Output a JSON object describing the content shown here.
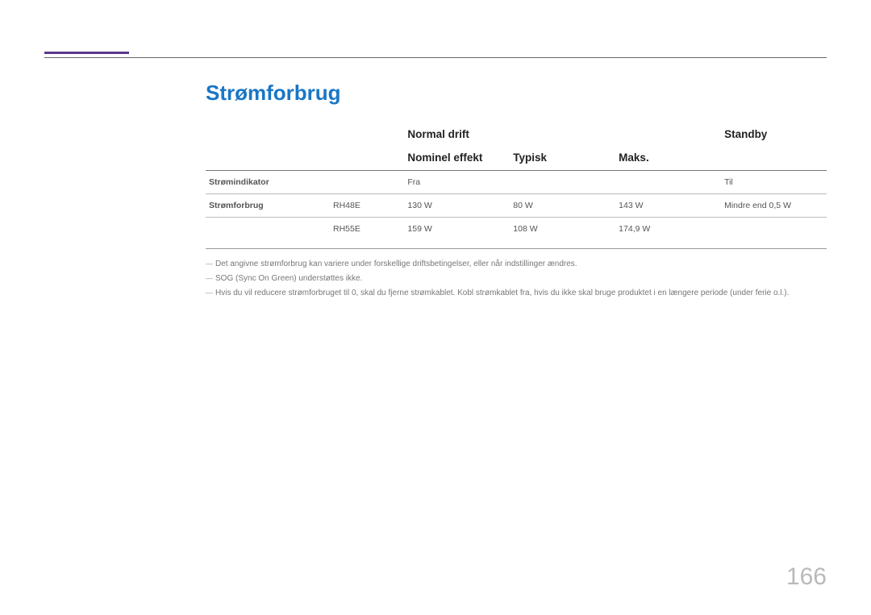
{
  "title": "Strømforbrug",
  "headers": {
    "normal_drift": "Normal drift",
    "standby": "Standby",
    "nominel_effekt": "Nominel effekt",
    "typisk": "Typisk",
    "maks": "Maks."
  },
  "rows": {
    "indicator": {
      "label": "Strømindikator",
      "fra": "Fra",
      "til": "Til"
    },
    "power": {
      "label": "Strømforbrug",
      "r1": {
        "model": "RH48E",
        "nominel": "130 W",
        "typisk": "80 W",
        "maks": "143 W",
        "standby": "Mindre end 0,5 W"
      },
      "r2": {
        "model": "RH55E",
        "nominel": "159 W",
        "typisk": "108 W",
        "maks": "174,9 W",
        "standby": ""
      }
    }
  },
  "footnotes": {
    "f1": "Det angivne strømforbrug kan variere under forskellige driftsbetingelser, eller når indstillinger ændres.",
    "f2": "SOG (Sync On Green) understøttes ikke.",
    "f3": "Hvis du vil reducere strømforbruget til 0, skal du fjerne strømkablet. Kobl strømkablet fra, hvis du ikke skal bruge produktet i en længere periode (under ferie o.l.)."
  },
  "page_number": "166"
}
